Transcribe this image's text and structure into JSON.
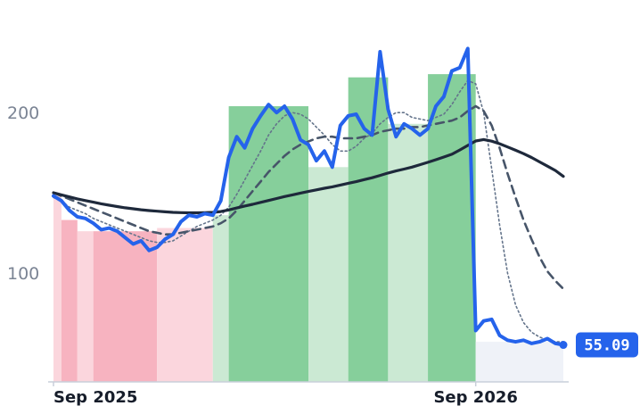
{
  "chart_data": {
    "type": "line",
    "title": "",
    "xlabel": "",
    "ylabel": "",
    "x_tick_labels": [
      {
        "label": "Sep 2025",
        "index": 0
      },
      {
        "label": "Sep 2026",
        "index": 53
      }
    ],
    "y_ticks": [
      100,
      200
    ],
    "ylim": [
      32,
      248
    ],
    "last_value_label": "55.09",
    "grid": false,
    "legend": "none",
    "colors": {
      "price": "#2563eb",
      "ma_long": "#1e293b",
      "ma_mid": "#475569",
      "ma_short": "#64748b",
      "area_up_strong": "#86cf9b",
      "area_up_light": "#cbe9d3",
      "area_down_strong": "#f7b3c0",
      "area_down_light": "#fbd6dd",
      "area_neutral": "#eff2f8"
    },
    "series": [
      {
        "key": "price",
        "values": [
          148,
          145,
          139,
          135,
          134,
          131,
          127,
          128,
          126,
          122,
          118,
          120,
          114,
          116,
          121,
          124,
          132,
          136,
          135,
          137,
          136,
          145,
          172,
          185,
          178,
          190,
          198,
          205,
          200,
          204,
          196,
          183,
          180,
          170,
          176,
          166,
          192,
          198,
          199,
          190,
          186,
          238,
          202,
          185,
          193,
          190,
          186,
          190,
          204,
          210,
          226,
          228,
          240,
          64,
          70,
          71,
          61,
          58,
          57,
          58,
          56,
          57,
          59,
          56,
          55.09
        ]
      },
      {
        "key": "ma_short",
        "values": [
          147,
          145,
          141,
          139,
          137,
          134,
          132,
          130,
          128,
          126,
          124,
          122,
          120,
          119,
          119,
          120,
          123,
          126,
          129,
          131,
          133,
          136,
          141,
          149,
          158,
          167,
          176,
          186,
          193,
          198,
          200,
          199,
          196,
          191,
          186,
          180,
          176,
          176,
          179,
          184,
          187,
          193,
          197,
          200,
          200,
          197,
          196,
          195,
          197,
          199,
          205,
          213,
          220,
          218,
          200,
          165,
          130,
          100,
          80,
          69,
          63,
          60,
          58,
          57,
          57
        ]
      },
      {
        "key": "ma_mid",
        "values": [
          150,
          148,
          146,
          144,
          142,
          140,
          138,
          136,
          134,
          132,
          130,
          128,
          126,
          125,
          124,
          124,
          125,
          126,
          127,
          128,
          129,
          131,
          134,
          139,
          145,
          151,
          157,
          163,
          168,
          173,
          177,
          180,
          182,
          184,
          185,
          185,
          184,
          184,
          184,
          185,
          186,
          188,
          189,
          190,
          190,
          191,
          191,
          192,
          193,
          194,
          195,
          197,
          201,
          204,
          201,
          192,
          178,
          162,
          147,
          133,
          121,
          110,
          101,
          95,
          90
        ]
      },
      {
        "key": "ma_long",
        "values": [
          150,
          148.7,
          147.4,
          146.2,
          145.1,
          144.1,
          143.1,
          142.2,
          141.4,
          140.6,
          140,
          139.4,
          138.9,
          138.5,
          138.1,
          137.8,
          137.6,
          137.5,
          137.5,
          137.6,
          137.8,
          138.3,
          139.3,
          140.5,
          141.7,
          142.8,
          144,
          145.2,
          146.4,
          147.6,
          148.7,
          149.8,
          150.8,
          151.8,
          152.8,
          153.7,
          154.8,
          155.9,
          156.9,
          158.2,
          159.4,
          160.8,
          162.3,
          163.6,
          164.8,
          166,
          167.5,
          169,
          170.6,
          172.3,
          174,
          176.7,
          179.5,
          182.3,
          183.2,
          182.2,
          180.6,
          178.6,
          176.5,
          174.4,
          172,
          169.3,
          166.6,
          163.9,
          160.2
        ]
      }
    ],
    "background_bands": [
      {
        "from": 0,
        "to": 1,
        "kind": "down_light",
        "level": 148
      },
      {
        "from": 1,
        "to": 3,
        "kind": "down_strong",
        "level": 133
      },
      {
        "from": 3,
        "to": 5,
        "kind": "down_light",
        "level": 126
      },
      {
        "from": 5,
        "to": 13,
        "kind": "down_strong",
        "level": 126
      },
      {
        "from": 13,
        "to": 20,
        "kind": "down_light",
        "level": 128
      },
      {
        "from": 20,
        "to": 22,
        "kind": "up_light",
        "level": 136
      },
      {
        "from": 22,
        "to": 32,
        "kind": "up_strong",
        "level": 204
      },
      {
        "from": 32,
        "to": 37,
        "kind": "up_light",
        "level": 166
      },
      {
        "from": 37,
        "to": 42,
        "kind": "up_strong",
        "level": 222
      },
      {
        "from": 42,
        "to": 47,
        "kind": "up_light",
        "level": 193
      },
      {
        "from": 47,
        "to": 53,
        "kind": "up_strong",
        "level": 224
      },
      {
        "from": 53,
        "to": 64,
        "kind": "neutral",
        "level": 57
      }
    ]
  }
}
